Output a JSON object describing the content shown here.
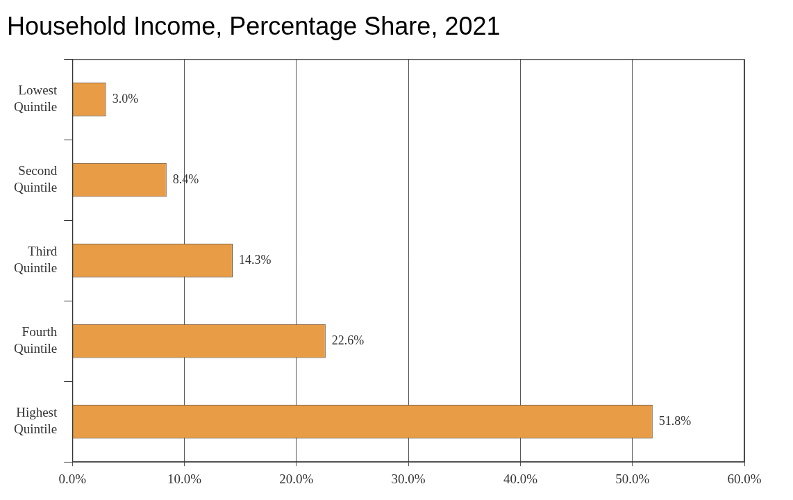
{
  "chart_data": {
    "type": "bar",
    "title": "Household Income, Percentage Share, 2021",
    "orientation": "horizontal",
    "categories": [
      "Lowest Quintile",
      "Second Quintile",
      "Third Quintile",
      "Fourth Quintile",
      "Highest Quintile"
    ],
    "values": [
      3.0,
      8.4,
      14.3,
      22.6,
      51.8
    ],
    "value_labels": [
      "3.0%",
      "8.4%",
      "14.3%",
      "22.6%",
      "51.8%"
    ],
    "data_labels": true,
    "color": "#e89c45",
    "xlim": [
      0,
      60
    ],
    "xticks": [
      {
        "value": 0,
        "label": "0.0%"
      },
      {
        "value": 10,
        "label": "10.0%"
      },
      {
        "value": 20,
        "label": "20.0%"
      },
      {
        "value": 30,
        "label": "30.0%"
      },
      {
        "value": 40,
        "label": "40.0%"
      },
      {
        "value": 50,
        "label": "50.0%"
      },
      {
        "value": 60,
        "label": "60.0%"
      }
    ],
    "grid": true
  }
}
